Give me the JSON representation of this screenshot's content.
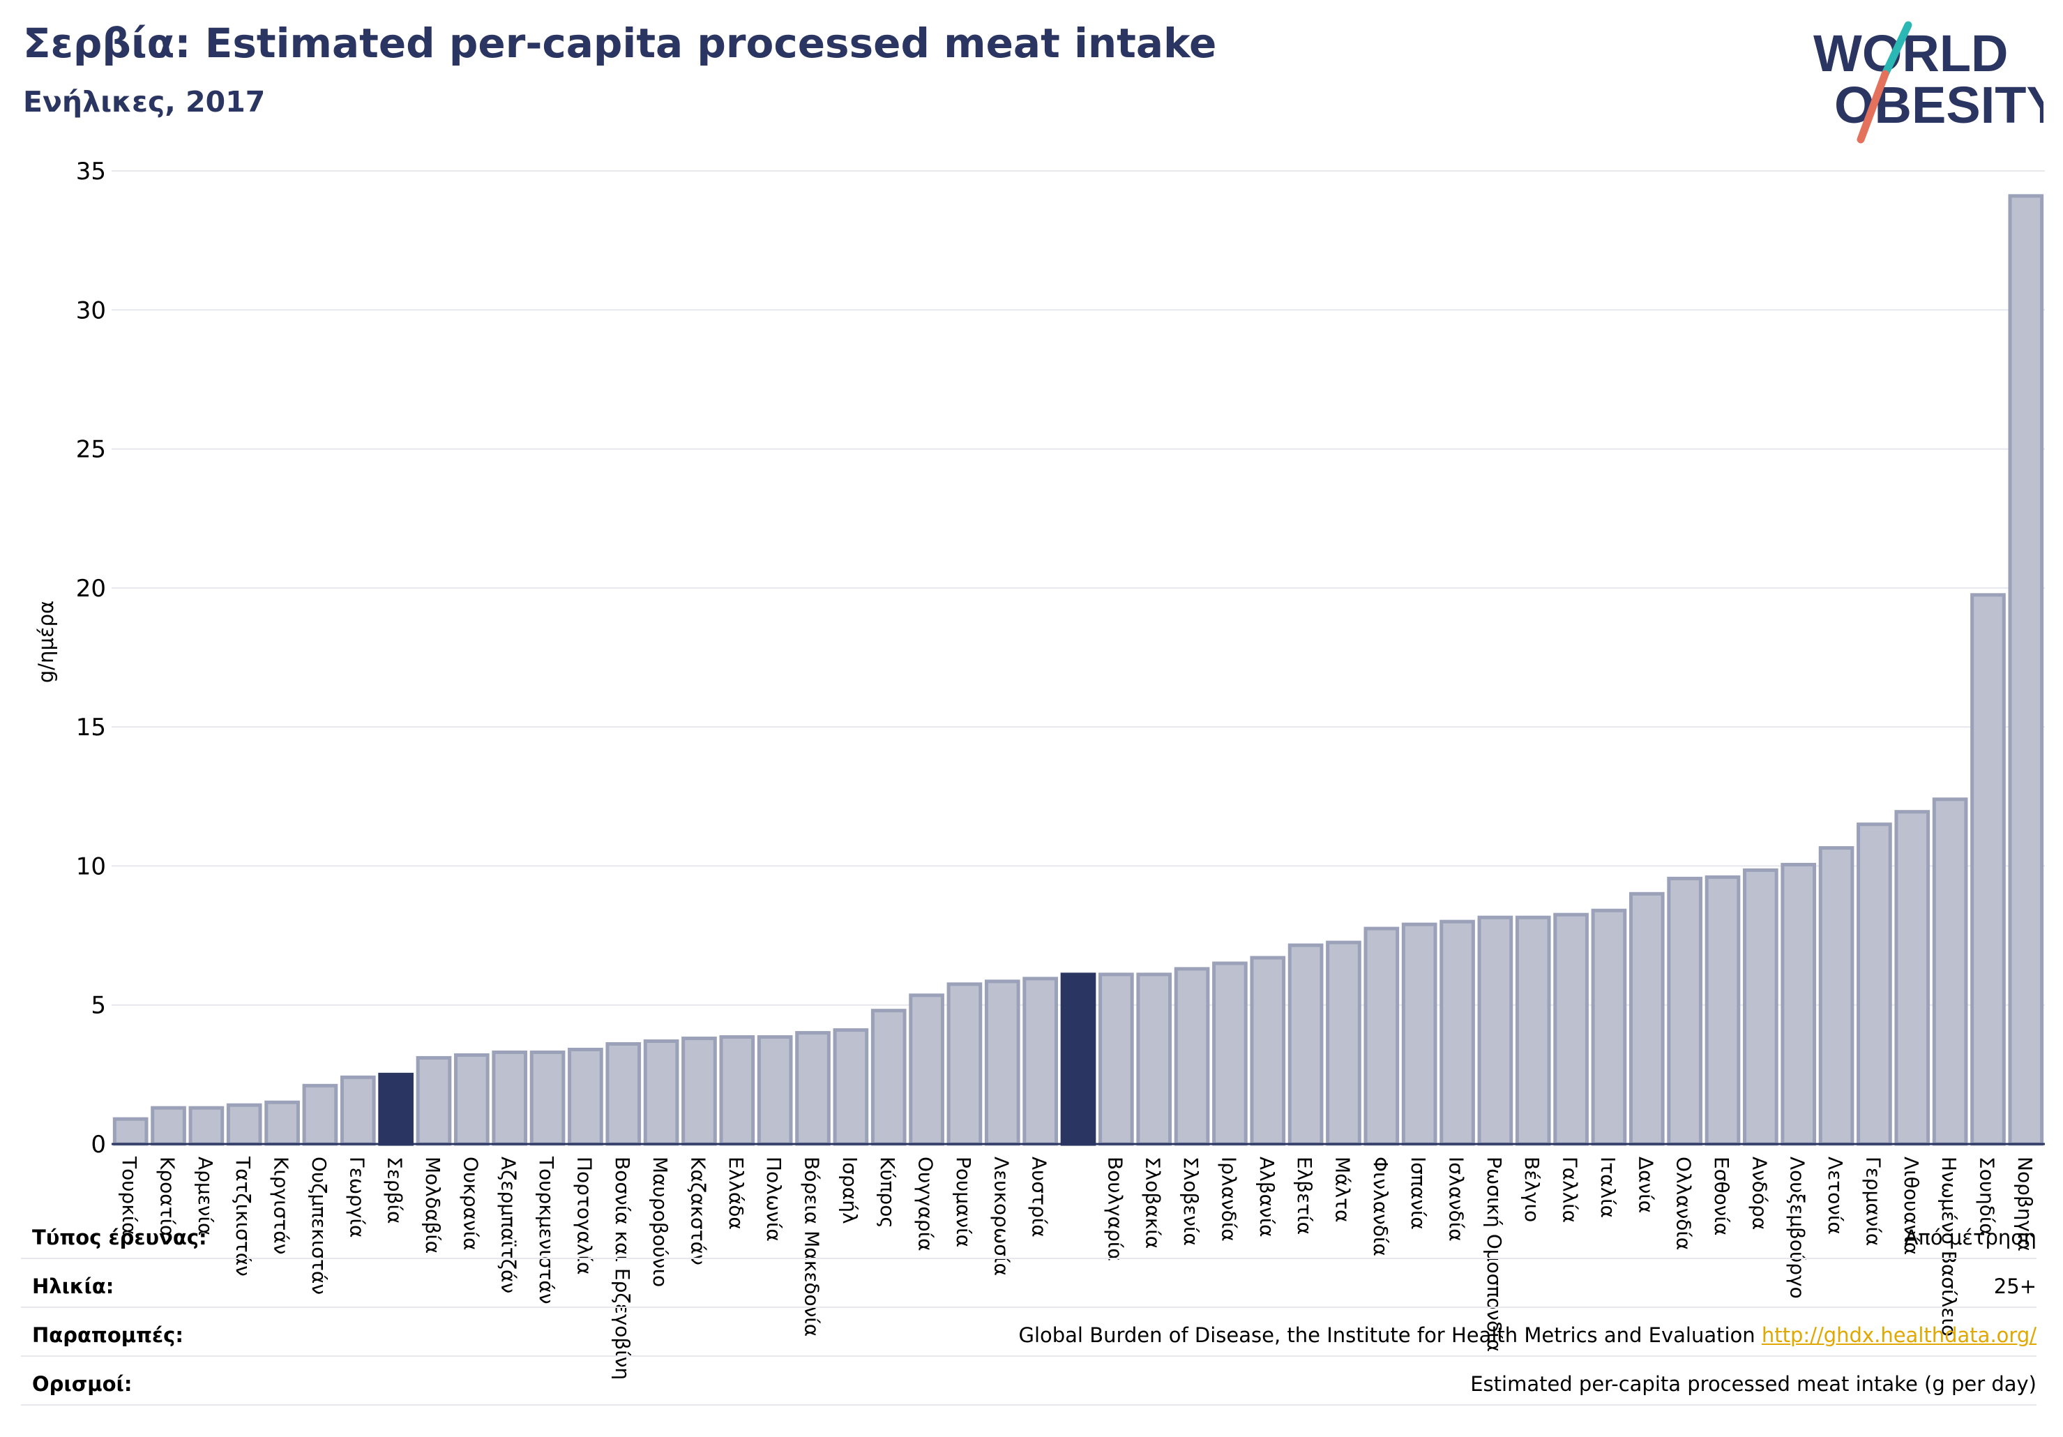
{
  "title": "Σερβία: Estimated per-capita processed meat intake",
  "subtitle": "Ενήλικες, 2017",
  "logo": {
    "line1": "WORLD",
    "line2": "OBESITY"
  },
  "colors": {
    "bar": "#bcc0cf",
    "bar_edge": "#9ba1b8",
    "highlight": "#2a3561",
    "grid": "#e6e8ee",
    "title": "#2a3561",
    "logo_teal": "#2bb7b3",
    "logo_coral": "#e4715b"
  },
  "chart_data": {
    "type": "bar",
    "ylabel": "g/ημέρα",
    "ylim": [
      0,
      35
    ],
    "yticks": [
      0,
      5,
      10,
      15,
      20,
      25,
      30,
      35
    ],
    "grid": true,
    "categories": [
      "Τουρκία",
      "Κροατία",
      "Αρμενία",
      "Τατζικιστάν",
      "Κιργιστάν",
      "Ουζμπεκιστάν",
      "Γεωργία",
      "Σερβία",
      "Μολδαβία",
      "Ουκρανία",
      "Αζερμπαϊτζάν",
      "Τουρκμενιστάν",
      "Πορτογαλία",
      "Βοσνία και Ερζεγοβίνη",
      "Μαυροβούνιο",
      "Καζακστάν",
      "Ελλάδα",
      "Πολωνία",
      "Βόρεια Μακεδονία",
      "Ισραήλ",
      "Κύπρος",
      "Ουγγαρία",
      "Ρουμανία",
      "Λευκορωσία",
      "Αυστρία",
      "",
      "Βουλγαρία",
      "Σλοβακία",
      "Σλοβενία",
      "Ιρλανδία",
      "Αλβανία",
      "Ελβετία",
      "Μάλτα",
      "Φινλανδία",
      "Ισπανία",
      "Ισλανδία",
      "Ρωσική Ομοσπονδία",
      "Βέλγιο",
      "Γαλλία",
      "Ιταλία",
      "Δανία",
      "Ολλανδία",
      "Εσθονία",
      "Ανδόρα",
      "Λουξεμβούργο",
      "Λετονία",
      "Γερμανία",
      "Λιθουανία",
      "Ηνωμένο Βασίλειο",
      "Σουηδία",
      "Νορβηγία"
    ],
    "values": [
      0.9,
      1.3,
      1.3,
      1.4,
      1.5,
      2.1,
      2.4,
      2.5,
      3.1,
      3.2,
      3.3,
      3.3,
      3.4,
      3.6,
      3.7,
      3.8,
      3.85,
      3.85,
      4.0,
      4.1,
      4.8,
      5.35,
      5.75,
      5.85,
      5.95,
      6.1,
      6.1,
      6.1,
      6.3,
      6.5,
      6.7,
      7.15,
      7.25,
      7.75,
      7.9,
      8.0,
      8.15,
      8.15,
      8.25,
      8.4,
      9.0,
      9.55,
      9.6,
      9.85,
      10.05,
      10.65,
      11.5,
      11.95,
      12.4,
      19.75,
      34.1
    ],
    "highlight_indices": [
      7,
      25
    ]
  },
  "info": {
    "survey_type_label": "Τύπος έρευνας:",
    "survey_type_value": "Από μέτρηση",
    "age_label": "Ηλικία:",
    "age_value": "25+",
    "references_label": "Παραπομπές:",
    "references_value": "Global Burden of Disease, the Institute for Health Metrics and Evaluation",
    "references_link": "http://ghdx.healthdata.org/",
    "definitions_label": "Ορισμοί:",
    "definitions_value": "Estimated per-capita processed meat intake (g per day)"
  }
}
